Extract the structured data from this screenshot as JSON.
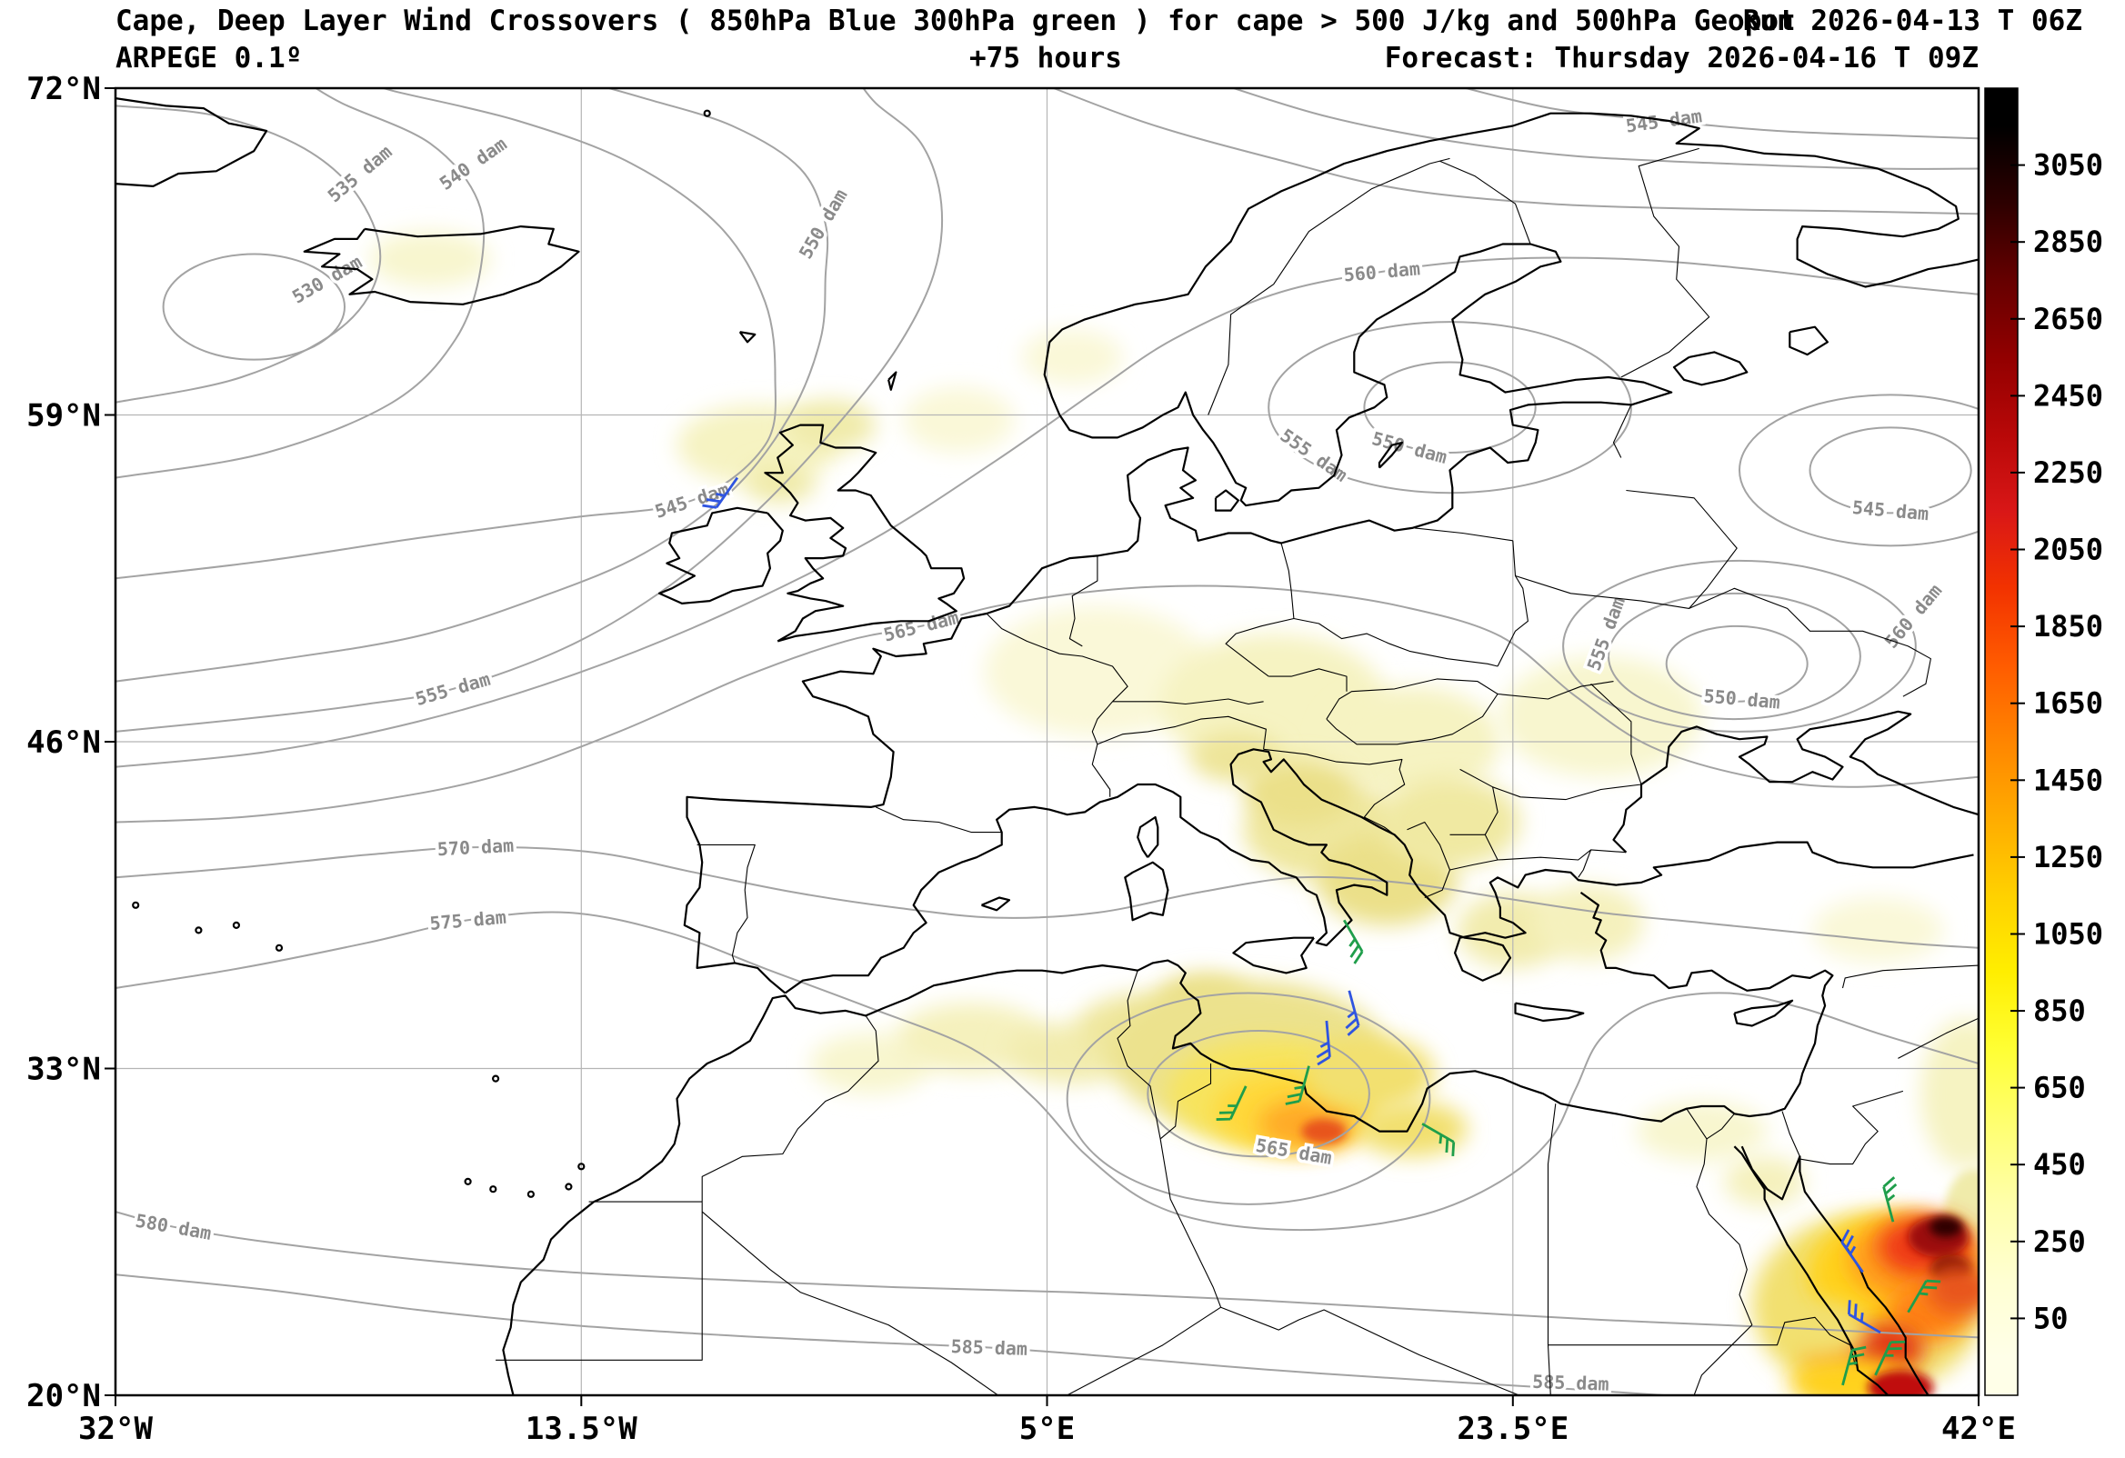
{
  "header": {
    "title_main": "Cape, Deep Layer Wind Crossovers ( 850hPa Blue 300hPa green ) for cape > 500 J/kg and 500hPa Geopot",
    "title_run": "Run 2026-04-13 T 06Z",
    "model_label": "ARPEGE 0.1º",
    "lead_label": "+75 hours",
    "valid_label": "Forecast: Thursday 2026-04-16 T 09Z"
  },
  "chart_data": {
    "type": "heatmap",
    "title": "Cape, Deep Layer Wind Crossovers ( 850hPa Blue 300hPa green ) for cape > 500 J/kg and 500hPa Geopot",
    "model": "ARPEGE 0.1º",
    "run": "Run 2026-04-13 T 06Z",
    "forecast_lead": "+75 hours",
    "valid": "Forecast: Thursday 2026-04-16 T 09Z",
    "units": "CAPE shading (J/kg), 500hPa geopotential contours (dam), wind barbs 850hPa blue / 300hPa green",
    "projection": {
      "lon_min": -32,
      "lon_max": 42,
      "lat_min": 20,
      "lat_max": 72
    },
    "x_ticks": [
      {
        "label": "32°W",
        "lon": -32
      },
      {
        "label": "13.5°W",
        "lon": -13.5
      },
      {
        "label": "5°E",
        "lon": 5
      },
      {
        "label": "23.5°E",
        "lon": 23.5
      },
      {
        "label": "42°E",
        "lon": 42
      }
    ],
    "y_ticks": [
      {
        "label": "72°N",
        "lat": 72
      },
      {
        "label": "59°N",
        "lat": 59
      },
      {
        "label": "46°N",
        "lat": 46
      },
      {
        "label": "33°N",
        "lat": 33
      },
      {
        "label": "20°N",
        "lat": 20
      }
    ],
    "colorbar": {
      "ticks": [
        3050,
        2850,
        2650,
        2450,
        2250,
        2050,
        1850,
        1650,
        1450,
        1250,
        1050,
        850,
        650,
        450,
        250,
        50
      ],
      "colors_bottom_to_top": [
        "#ffffe8",
        "#ffffd2",
        "#ffffaa",
        "#ffff72",
        "#ffff34",
        "#ffee00",
        "#ffd100",
        "#ffac00",
        "#ff8500",
        "#ff5b00",
        "#f23200",
        "#d91717",
        "#b80808",
        "#920000",
        "#650000",
        "#2d0000",
        "#000000"
      ]
    },
    "geopotential_contour_levels_dam": [
      530,
      535,
      540,
      545,
      550,
      555,
      560,
      565,
      570,
      575,
      580,
      585
    ],
    "contour_unit": "dam",
    "contour_labels": [
      {
        "text": "530 dam",
        "lon": -23.6,
        "lat": 64.4,
        "rot": -30
      },
      {
        "text": "535 dam",
        "lon": -22.3,
        "lat": 68.6,
        "rot": -40
      },
      {
        "text": "540 dam",
        "lon": -17.8,
        "lat": 69.0,
        "rot": -35
      },
      {
        "text": "545 dam",
        "lon": -9.1,
        "lat": 55.6,
        "rot": -18
      },
      {
        "text": "550 dam",
        "lon": -3.9,
        "lat": 66.6,
        "rot": -60
      },
      {
        "text": "555 dam",
        "lon": -18.6,
        "lat": 48.1,
        "rot": -16
      },
      {
        "text": "560 dam",
        "lon": 18.3,
        "lat": 64.7,
        "rot": -5
      },
      {
        "text": "565 dam",
        "lon": 0.0,
        "lat": 50.6,
        "rot": -14
      },
      {
        "text": "570 dam",
        "lon": -17.7,
        "lat": 41.8,
        "rot": -3
      },
      {
        "text": "575 dam",
        "lon": -18.0,
        "lat": 38.9,
        "rot": -5
      },
      {
        "text": "580 dam",
        "lon": -29.7,
        "lat": 26.7,
        "rot": 10
      },
      {
        "text": "585 dam",
        "lon": 2.7,
        "lat": 21.9,
        "rot": 2
      },
      {
        "text": "585 dam",
        "lon": 25.8,
        "lat": 20.5,
        "rot": 2
      },
      {
        "text": "565 dam",
        "lon": 14.8,
        "lat": 29.7,
        "rot": 10
      },
      {
        "text": "550 dam",
        "lon": 19.4,
        "lat": 57.7,
        "rot": 15
      },
      {
        "text": "555 dam",
        "lon": 15.6,
        "lat": 57.4,
        "rot": 35
      },
      {
        "text": "550 dam",
        "lon": 32.6,
        "lat": 47.7,
        "rot": 5
      },
      {
        "text": "555 dam",
        "lon": 27.2,
        "lat": 50.3,
        "rot": -70
      },
      {
        "text": "560 dam",
        "lon": 39.4,
        "lat": 51.0,
        "rot": -50
      },
      {
        "text": "545 dam",
        "lon": 29.5,
        "lat": 70.7,
        "rot": -8
      },
      {
        "text": "545 dam",
        "lon": 38.5,
        "lat": 55.2,
        "rot": 5
      }
    ],
    "wind_barb_levels": {
      "850hPa": "#2f54e0",
      "300hPa": "#1f9e4b"
    },
    "wind_barbs": [
      {
        "lon": -7.3,
        "lat": 56.5,
        "dir": 215,
        "level": "850hPa"
      },
      {
        "lon": 16.8,
        "lat": 38.9,
        "dir": 150,
        "level": "300hPa"
      },
      {
        "lon": 17.0,
        "lat": 36.1,
        "dir": 165,
        "level": "850hPa"
      },
      {
        "lon": 16.1,
        "lat": 34.9,
        "dir": 175,
        "level": "850hPa"
      },
      {
        "lon": 15.4,
        "lat": 33.1,
        "dir": 195,
        "level": "300hPa"
      },
      {
        "lon": 12.9,
        "lat": 32.3,
        "dir": 205,
        "level": "300hPa"
      },
      {
        "lon": 19.9,
        "lat": 30.8,
        "dir": 120,
        "level": "300hPa"
      },
      {
        "lon": 38.6,
        "lat": 26.9,
        "dir": 345,
        "level": "300hPa"
      },
      {
        "lon": 37.4,
        "lat": 24.9,
        "dir": 325,
        "level": "850hPa"
      },
      {
        "lon": 39.2,
        "lat": 23.3,
        "dir": 30,
        "level": "300hPa"
      },
      {
        "lon": 38.1,
        "lat": 22.5,
        "dir": 300,
        "level": "850hPa"
      },
      {
        "lon": 37.9,
        "lat": 20.8,
        "dir": 25,
        "level": "300hPa"
      },
      {
        "lon": 36.6,
        "lat": 20.4,
        "dir": 15,
        "level": "300hPa"
      }
    ],
    "cape_regions": [
      {
        "lon": -6.5,
        "lat": 57.8,
        "rx": 3.2,
        "ry": 1.6,
        "c": "#f6f3c2"
      },
      {
        "lon": -3.6,
        "lat": 58.6,
        "rx": 1.8,
        "ry": 1.0,
        "c": "#f0ebaa"
      },
      {
        "lon": -5.6,
        "lat": 56.3,
        "rx": 1.4,
        "ry": 0.8,
        "c": "#f0ebaa"
      },
      {
        "lon": 1.5,
        "lat": 58.8,
        "rx": 2.2,
        "ry": 1.3,
        "c": "#faf8d8"
      },
      {
        "lon": -19.5,
        "lat": 65.2,
        "rx": 2.4,
        "ry": 1.1,
        "c": "#f8f6cf"
      },
      {
        "lon": 6.0,
        "lat": 61.3,
        "rx": 2.0,
        "ry": 1.1,
        "c": "#faf8d8"
      },
      {
        "lon": 7.0,
        "lat": 48.8,
        "rx": 4.5,
        "ry": 2.6,
        "c": "#faf8d8"
      },
      {
        "lon": 14.0,
        "lat": 47.5,
        "rx": 4.5,
        "ry": 2.8,
        "c": "#f6f3c2"
      },
      {
        "lon": 19.5,
        "lat": 46.0,
        "rx": 3.5,
        "ry": 2.2,
        "c": "#f6f3c2"
      },
      {
        "lon": 27.0,
        "lat": 47.0,
        "rx": 4.0,
        "ry": 2.4,
        "c": "#f8f6cf"
      },
      {
        "lon": 12.5,
        "lat": 45.4,
        "rx": 1.8,
        "ry": 1.0,
        "c": "#eee59a"
      },
      {
        "lon": 16.0,
        "lat": 42.5,
        "rx": 3.2,
        "ry": 2.0,
        "c": "#efe79e"
      },
      {
        "lon": 15.0,
        "lat": 44.0,
        "rx": 2.2,
        "ry": 1.3,
        "c": "#ebe089"
      },
      {
        "lon": 18.5,
        "lat": 40.5,
        "rx": 2.8,
        "ry": 1.8,
        "c": "#ebe089"
      },
      {
        "lon": 21.0,
        "lat": 42.8,
        "rx": 2.8,
        "ry": 1.8,
        "c": "#f0e9a2"
      },
      {
        "lon": 23.5,
        "lat": 38.5,
        "rx": 2.2,
        "ry": 1.5,
        "c": "#f2ecae"
      },
      {
        "lon": 26.5,
        "lat": 38.8,
        "rx": 2.2,
        "ry": 1.5,
        "c": "#f5f1bd"
      },
      {
        "lon": -2.0,
        "lat": 33.2,
        "rx": 2.4,
        "ry": 1.2,
        "c": "#f8f6cf"
      },
      {
        "lon": 2.0,
        "lat": 34.2,
        "rx": 3.0,
        "ry": 1.4,
        "c": "#f5f1bd"
      },
      {
        "lon": 6.0,
        "lat": 33.6,
        "rx": 2.6,
        "ry": 1.2,
        "c": "#f2ecae"
      },
      {
        "lon": 9.0,
        "lat": 34.6,
        "rx": 2.8,
        "ry": 1.4,
        "c": "#efe79e"
      },
      {
        "lon": 11.2,
        "lat": 35.8,
        "rx": 1.8,
        "ry": 1.0,
        "c": "#ebe089"
      },
      {
        "lon": 13.0,
        "lat": 33.5,
        "rx": 5.5,
        "ry": 3.0,
        "c": "#ece28d"
      },
      {
        "lon": 14.0,
        "lat": 32.0,
        "rx": 4.2,
        "ry": 2.2,
        "c": "#f7e45e"
      },
      {
        "lon": 14.8,
        "lat": 31.3,
        "rx": 3.2,
        "ry": 1.6,
        "c": "#ffd83a"
      },
      {
        "lon": 15.4,
        "lat": 30.8,
        "rx": 2.0,
        "ry": 1.0,
        "c": "#ffaa26"
      },
      {
        "lon": 16.0,
        "lat": 30.5,
        "rx": 0.9,
        "ry": 0.5,
        "c": "#e8541f"
      },
      {
        "lon": 17.8,
        "lat": 32.8,
        "rx": 2.6,
        "ry": 1.5,
        "c": "#f2e070"
      },
      {
        "lon": 19.5,
        "lat": 30.6,
        "rx": 2.2,
        "ry": 1.1,
        "c": "#f2e070"
      },
      {
        "lon": 31.0,
        "lat": 30.5,
        "rx": 2.6,
        "ry": 1.2,
        "c": "#f8f6cf"
      },
      {
        "lon": 33.5,
        "lat": 28.5,
        "rx": 1.6,
        "ry": 1.0,
        "c": "#f5f1bd"
      },
      {
        "lon": 38.0,
        "lat": 38.5,
        "rx": 2.6,
        "ry": 1.3,
        "c": "#faf8d8"
      },
      {
        "lon": 41.5,
        "lat": 32.0,
        "rx": 1.8,
        "ry": 3.0,
        "c": "#f6f3c2"
      },
      {
        "lon": 41.8,
        "lat": 27.0,
        "rx": 1.2,
        "ry": 2.0,
        "c": "#f0ebaa"
      },
      {
        "lon": 37.6,
        "lat": 23.6,
        "rx": 4.6,
        "ry": 3.6,
        "c": "#f2e070"
      },
      {
        "lon": 38.6,
        "lat": 24.8,
        "rx": 3.4,
        "ry": 2.4,
        "c": "#ffd21f"
      },
      {
        "lon": 39.4,
        "lat": 25.4,
        "rx": 2.6,
        "ry": 1.7,
        "c": "#ff9e1f"
      },
      {
        "lon": 39.9,
        "lat": 25.9,
        "rx": 1.9,
        "ry": 1.2,
        "c": "#ef3b17"
      },
      {
        "lon": 40.4,
        "lat": 26.3,
        "rx": 1.2,
        "ry": 0.8,
        "c": "#9c1008"
      },
      {
        "lon": 40.7,
        "lat": 26.7,
        "rx": 0.65,
        "ry": 0.4,
        "c": "#2e0202"
      },
      {
        "lon": 40.9,
        "lat": 25.0,
        "rx": 0.8,
        "ry": 0.6,
        "c": "#7a0a05"
      },
      {
        "lon": 40.0,
        "lat": 23.3,
        "rx": 1.6,
        "ry": 1.2,
        "c": "#ff8414"
      },
      {
        "lon": 41.3,
        "lat": 24.2,
        "rx": 1.4,
        "ry": 1.0,
        "c": "#e8541f"
      },
      {
        "lon": 37.3,
        "lat": 21.6,
        "rx": 2.2,
        "ry": 1.2,
        "c": "#ff9e1f"
      },
      {
        "lon": 38.3,
        "lat": 21.9,
        "rx": 1.5,
        "ry": 0.9,
        "c": "#e03515"
      },
      {
        "lon": 36.9,
        "lat": 20.5,
        "rx": 2.4,
        "ry": 1.0,
        "c": "#ffd21f"
      },
      {
        "lon": 38.9,
        "lat": 20.3,
        "rx": 1.3,
        "ry": 0.7,
        "c": "#c01010"
      },
      {
        "lon": 35.8,
        "lat": 22.6,
        "rx": 1.8,
        "ry": 1.1,
        "c": "#f2e070"
      }
    ]
  }
}
